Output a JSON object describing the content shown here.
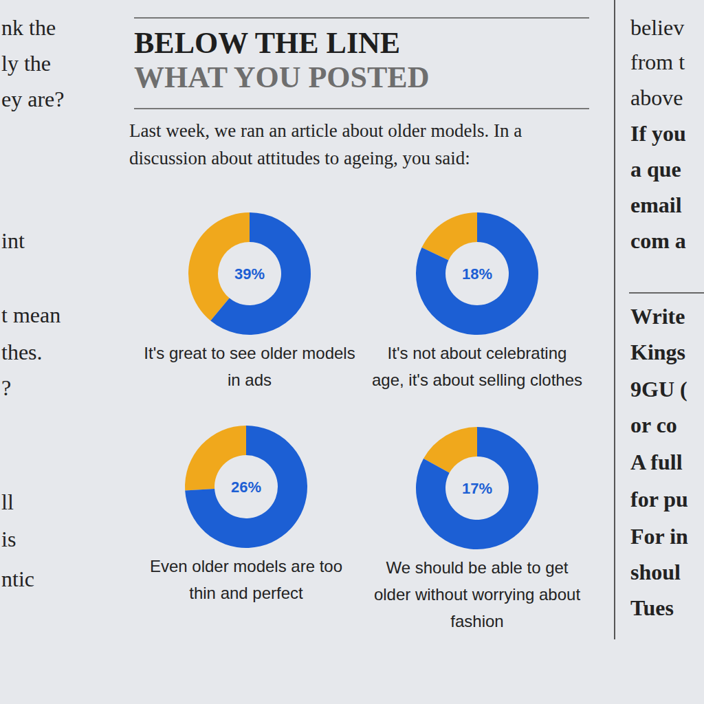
{
  "header": {
    "title": "BELOW THE LINE",
    "subtitle": "WHAT YOU POSTED",
    "intro": "Last week, we ran an article about older models. In a discussion about attitudes to ageing, you said:"
  },
  "chart_data": [
    {
      "type": "pie",
      "title": "It's great to see older models in ads",
      "values": [
        39,
        61
      ],
      "value_labels": [
        "39%",
        null
      ],
      "colors": [
        "#f0a81c",
        "#1c5fd4"
      ],
      "data_labels": true
    },
    {
      "type": "pie",
      "title": "It's not about celebrating age, it's about selling clothes",
      "values": [
        18,
        82
      ],
      "value_labels": [
        "18%",
        null
      ],
      "colors": [
        "#f0a81c",
        "#1c5fd4"
      ],
      "data_labels": true
    },
    {
      "type": "pie",
      "title": "Even older models are too thin and perfect",
      "values": [
        26,
        74
      ],
      "value_labels": [
        "26%",
        null
      ],
      "colors": [
        "#f0a81c",
        "#1c5fd4"
      ],
      "data_labels": true
    },
    {
      "type": "pie",
      "title": "We should be able to get older without worrying about fashion",
      "values": [
        17,
        83
      ],
      "value_labels": [
        "17%",
        null
      ],
      "colors": [
        "#f0a81c",
        "#1c5fd4"
      ],
      "data_labels": true
    }
  ],
  "margin_text": {
    "left": [
      "nk the",
      "ly the",
      "ey are?",
      "int",
      "t mean",
      "thes.",
      "?",
      "ll",
      "is",
      "ntic"
    ],
    "right": [
      "believ",
      "from t",
      "above",
      "If you",
      "a que",
      "email",
      "com a",
      "Write",
      "Kings",
      "9GU (",
      "or co",
      "A full",
      "for pu",
      "For in",
      "shoul",
      "Tues"
    ]
  }
}
